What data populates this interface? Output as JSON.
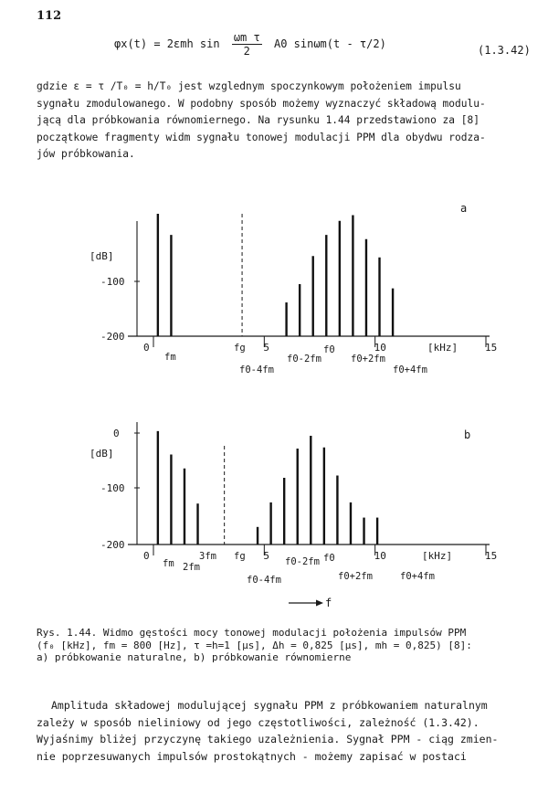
{
  "page_number": "112",
  "equation": {
    "lhs": "φx(t) = 2εmh sin",
    "frac_num": "ωm τ",
    "frac_den": "2",
    "rhs": "A0 sinωm(t - τ/2)",
    "number": "(1.3.42)"
  },
  "paragraph_lines": [
    "gdzie  ε = τ /T₀ = h/T₀  jest wzglednym spoczynkowym położeniem impulsu",
    "sygnału zmodulowanego. W podobny sposób możemy wyznaczyć składową modulu-",
    "jącą dla próbkowania równomiernego. Na rysunku 1.44 przedstawiono za [8]",
    "początkowe fragmenty widm sygnału tonowej modulacji PPM dla obydwu rodza-",
    "jów próbkowania."
  ],
  "chart_data": [
    {
      "type": "bar",
      "panel_label": "a",
      "ylabel": "[dB]",
      "xlabel": "[kHz]",
      "yticks": [
        "-100",
        "-200"
      ],
      "ylim": [
        -200,
        0
      ],
      "xlim": [
        0,
        15
      ],
      "xticks": [
        "0",
        "5",
        "10",
        "15"
      ],
      "annotations": [
        "fm",
        "fg",
        "f0-4fm",
        "f0-2fm",
        "f0",
        "f0+2fm",
        "f0+4fm"
      ],
      "x": [
        0.2,
        0.8,
        6.0,
        6.6,
        7.2,
        7.8,
        8.4,
        9.0,
        9.6,
        10.2,
        10.8
      ],
      "values": [
        -26,
        -56,
        -152,
        -126,
        -86,
        -56,
        -36,
        -28,
        -62,
        -88,
        -132
      ],
      "fg_line_x": 4.0
    },
    {
      "type": "bar",
      "panel_label": "b",
      "ylabel": "[dB]",
      "xlabel": "[kHz]",
      "yticks": [
        "0",
        "-100",
        "-200"
      ],
      "ylim": [
        -200,
        0
      ],
      "xlim": [
        0,
        15
      ],
      "xticks": [
        "0",
        "5",
        "10",
        "15"
      ],
      "annotations": [
        "fm",
        "2fm",
        "3fm",
        "fg",
        "f0-4fm",
        "f0-2fm",
        "f0",
        "f0+2fm",
        "f0+4fm"
      ],
      "x": [
        0.2,
        0.8,
        1.4,
        2.0,
        4.7,
        5.3,
        5.9,
        6.5,
        7.1,
        7.7,
        8.3,
        8.9,
        9.5,
        10.1
      ],
      "values": [
        -6,
        -46,
        -70,
        -130,
        -170,
        -128,
        -86,
        -36,
        -14,
        -34,
        -82,
        -128,
        -154,
        -154
      ],
      "fg_line_x": 3.2
    }
  ],
  "f_arrow_label": "f",
  "caption_lines": [
    "Rys. 1.44. Widmo gęstości mocy tonowej modulacji położenia impulsów PPM",
    "(f₀ [kHz], fm = 800 [Hz], τ =h=1 [µs], Δh = 0,825 [µs], mh = 0,825) [8]:",
    "a) próbkowanie naturalne, b) próbkowanie równomierne"
  ],
  "final_lines": [
    "Amplituda składowej modulującej sygnału PPM z próbkowaniem naturalnym",
    "zależy w sposób nieliniowy od jego częstotliwości, zależność (1.3.42).",
    "Wyjaśnimy bliżej przyczynę takiego uzależnienia. Sygnał PPM - ciąg zmien-",
    "nie poprzesuwanych impulsów prostokątnych - możemy zapisać w postaci"
  ]
}
